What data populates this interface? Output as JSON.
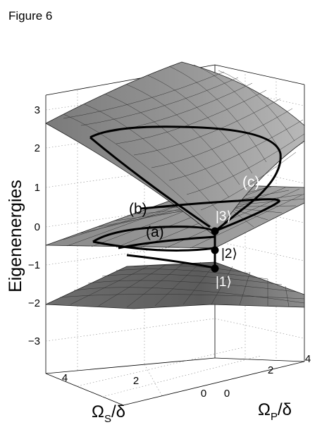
{
  "figure_label": "Figure 6",
  "chart_data": {
    "type": "surface",
    "zlabel": "Eigenenergies",
    "xlabel": {
      "symbol": "Ω",
      "sub": "S",
      "rest": "/δ"
    },
    "ylabel": {
      "symbol": "Ω",
      "sub": "P",
      "rest": "/δ"
    },
    "xlim": [
      0,
      5
    ],
    "ylim": [
      0,
      5
    ],
    "zlim": [
      -3.5,
      3.5
    ],
    "z_ticks": [
      "3",
      "2",
      "1",
      "0",
      "−1",
      "−2",
      "−3"
    ],
    "x_ticks": [
      "4",
      "2",
      "0"
    ],
    "y_ticks": [
      "0",
      "2",
      "4"
    ],
    "grid": true,
    "surfaces": [
      {
        "name": "upper",
        "z_at_origin": 0.3,
        "z_at_corners": {
          "Ωs=5,Ωp=5": 3.0,
          "Ωs=5,Ωp=0": 2.6,
          "Ωs=0,Ωp=5": 2.8
        }
      },
      {
        "name": "middle",
        "z_at_origin": -0.2,
        "z_at_corners": {
          "Ωs=5,Ωp=5": -0.6,
          "Ωs=5,Ωp=0": -0.5,
          "Ωs=0,Ωp=5": 0.9
        }
      },
      {
        "name": "lower",
        "z_at_origin": -1.1,
        "z_at_corners": {
          "Ωs=5,Ωp=5": -2.2,
          "Ωs=5,Ωp=0": -2.2,
          "Ωs=0,Ωp=5": -2.1
        }
      }
    ],
    "paths": [
      {
        "label": "(a)"
      },
      {
        "label": "(b)"
      },
      {
        "label": "(c)"
      }
    ],
    "states": [
      {
        "label": "|1⟩",
        "z": -1.1
      },
      {
        "label": "|2⟩",
        "z": -0.55
      },
      {
        "label": "|3⟩",
        "z": -0.15
      }
    ]
  }
}
